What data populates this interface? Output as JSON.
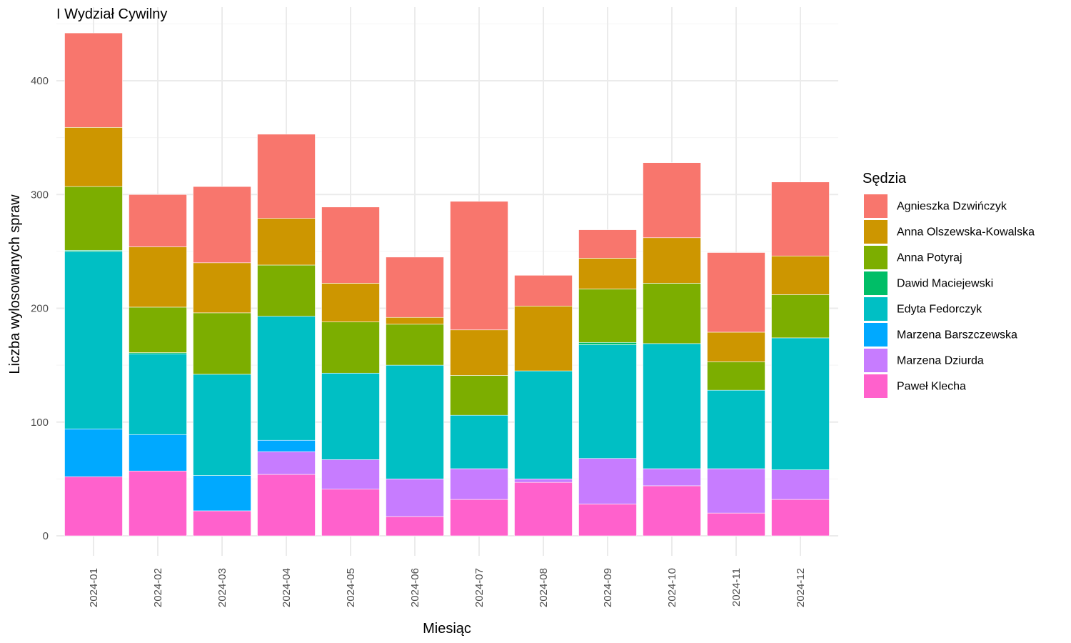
{
  "chart_data": {
    "type": "bar",
    "stacked": true,
    "title": "I Wydział Cywilny",
    "xlabel": "Miesiąc",
    "ylabel": "Liczba wylosowanych spraw",
    "ylim": [
      0,
      450
    ],
    "yticks": [
      0,
      100,
      200,
      300,
      400
    ],
    "grid": true,
    "legend_title": "Sędzia",
    "legend_position": "right",
    "categories": [
      "2024-01",
      "2024-02",
      "2024-03",
      "2024-04",
      "2024-05",
      "2024-06",
      "2024-07",
      "2024-08",
      "2024-09",
      "2024-10",
      "2024-11",
      "2024-12"
    ],
    "series": [
      {
        "name": "Agnieszka Dzwińczyk",
        "color": "#F8766D",
        "values": [
          83,
          46,
          67,
          74,
          67,
          53,
          113,
          27,
          25,
          66,
          70,
          65
        ]
      },
      {
        "name": "Anna Olszewska-Kowalska",
        "color": "#CD9600",
        "values": [
          52,
          53,
          44,
          41,
          34,
          6,
          40,
          57,
          27,
          40,
          26,
          34
        ]
      },
      {
        "name": "Anna Potyraj",
        "color": "#7CAE00",
        "values": [
          56,
          40,
          54,
          45,
          45,
          36,
          35,
          0,
          47,
          53,
          25,
          38
        ]
      },
      {
        "name": "Dawid Maciejewski",
        "color": "#00BE67",
        "values": [
          1,
          1,
          0,
          0,
          0,
          0,
          0,
          0,
          2,
          0,
          0,
          0
        ]
      },
      {
        "name": "Edyta Fedorczyk",
        "color": "#00BFC4",
        "values": [
          156,
          71,
          89,
          109,
          76,
          100,
          47,
          95,
          100,
          110,
          69,
          116
        ]
      },
      {
        "name": "Marzena Barszczewska",
        "color": "#00A9FF",
        "values": [
          42,
          32,
          31,
          10,
          0,
          0,
          0,
          0,
          0,
          0,
          0,
          0
        ]
      },
      {
        "name": "Marzena Dziurda",
        "color": "#C77CFF",
        "values": [
          0,
          0,
          0,
          20,
          26,
          33,
          27,
          3,
          40,
          15,
          39,
          26
        ]
      },
      {
        "name": "Paweł Klecha",
        "color": "#FF61CC",
        "values": [
          52,
          57,
          22,
          54,
          41,
          17,
          32,
          47,
          28,
          44,
          20,
          32
        ]
      }
    ]
  }
}
